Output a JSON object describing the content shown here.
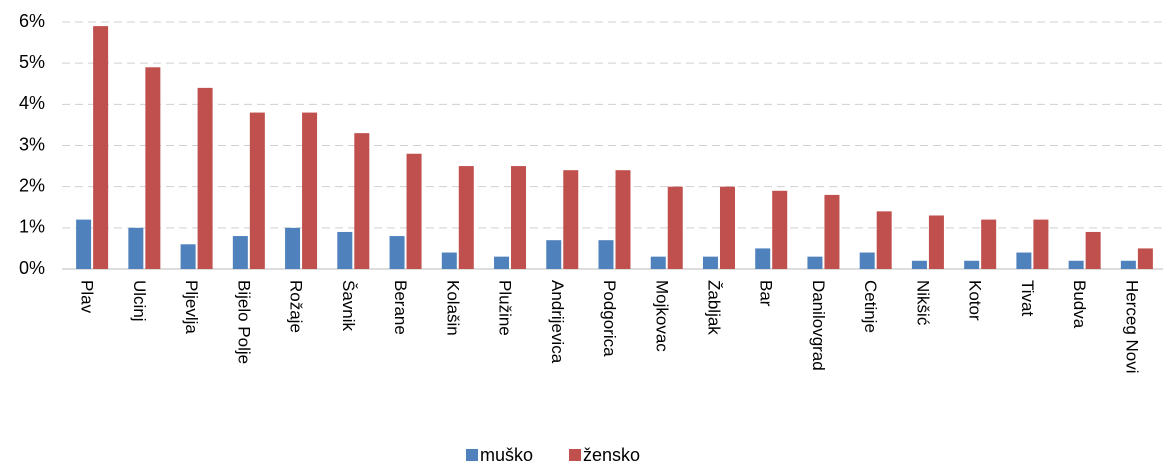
{
  "chart_data": {
    "type": "bar",
    "categories": [
      "Plav",
      "Ulcinj",
      "Pljevlja",
      "Bijelo Polje",
      "Rožaje",
      "Šavnik",
      "Berane",
      "Kolašin",
      "Plužine",
      "Andrijevica",
      "Podgorica",
      "Mojkovac",
      "Žabljak",
      "Bar",
      "Danilovgrad",
      "Cetinje",
      "Nikšić",
      "Kotor",
      "Tivat",
      "Budva",
      "Herceg Novi"
    ],
    "series": [
      {
        "name": "muško",
        "color": "#4f81bd",
        "values": [
          1.2,
          1.0,
          0.6,
          0.8,
          1.0,
          0.9,
          0.8,
          0.4,
          0.3,
          0.7,
          0.7,
          0.3,
          0.3,
          0.5,
          0.3,
          0.4,
          0.2,
          0.2,
          0.4,
          0.2,
          0.2
        ]
      },
      {
        "name": "žensko",
        "color": "#c0504d",
        "values": [
          5.9,
          4.9,
          4.4,
          3.8,
          3.8,
          3.3,
          2.8,
          2.5,
          2.5,
          2.4,
          2.4,
          2.0,
          2.0,
          1.9,
          1.8,
          1.4,
          1.3,
          1.2,
          1.2,
          0.9,
          0.5
        ]
      }
    ],
    "ylim": [
      0,
      6
    ],
    "yticks": [
      {
        "value": 0,
        "label": "0%"
      },
      {
        "value": 1,
        "label": "1%"
      },
      {
        "value": 2,
        "label": "2%"
      },
      {
        "value": 3,
        "label": "3%"
      },
      {
        "value": 4,
        "label": "4%"
      },
      {
        "value": 5,
        "label": "5%"
      },
      {
        "value": 6,
        "label": "6%"
      }
    ],
    "grid": true,
    "legend": "bottom"
  }
}
